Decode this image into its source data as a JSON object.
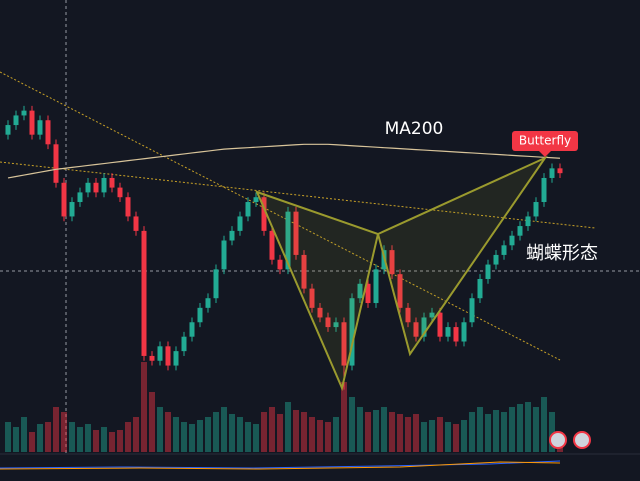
{
  "chart_data": {
    "type": "candlestick",
    "ylim": [
      0,
      100
    ],
    "y2lim": [
      0,
      100
    ],
    "up_color": "#22ab94",
    "down_color": "#f23645",
    "annotations": {
      "ma_label": "MA200",
      "pattern_badge": "Butterfly",
      "pattern_note": "蝴蝶形态"
    },
    "open": [
      72,
      74,
      76,
      77,
      72,
      75,
      70,
      62,
      55,
      58,
      60,
      62,
      60,
      63,
      61,
      59,
      55,
      52,
      26,
      25,
      28,
      24,
      27,
      30,
      33,
      36,
      38,
      44,
      50,
      52,
      55,
      58,
      59,
      52,
      46,
      44,
      56,
      47,
      40,
      36,
      34,
      32,
      33,
      24,
      38,
      41,
      37,
      44,
      48,
      43,
      36,
      33,
      30,
      34,
      35,
      30,
      32,
      29,
      33,
      38,
      42,
      45,
      47,
      49,
      51,
      53,
      55,
      58,
      63,
      65
    ],
    "high": [
      75,
      77,
      78,
      78,
      76,
      76,
      71,
      63,
      59,
      61,
      63,
      63,
      64,
      64,
      62,
      60,
      56,
      53,
      27,
      29,
      29,
      28,
      31,
      34,
      37,
      39,
      45,
      51,
      53,
      56,
      59,
      60,
      60,
      53,
      47,
      57,
      57,
      48,
      41,
      37,
      35,
      34,
      34,
      39,
      42,
      42,
      45,
      49,
      49,
      44,
      37,
      34,
      35,
      36,
      36,
      33,
      33,
      34,
      39,
      43,
      46,
      48,
      50,
      52,
      54,
      56,
      59,
      64,
      66,
      66
    ],
    "low": [
      71,
      73,
      75,
      71,
      71,
      69,
      61,
      54,
      54,
      57,
      59,
      59,
      59,
      60,
      58,
      54,
      51,
      25,
      24,
      24,
      23,
      23,
      26,
      29,
      32,
      35,
      37,
      43,
      49,
      51,
      54,
      57,
      51,
      45,
      43,
      43,
      46,
      39,
      35,
      33,
      31,
      31,
      19,
      23,
      37,
      36,
      36,
      43,
      42,
      35,
      32,
      29,
      29,
      33,
      29,
      29,
      28,
      28,
      32,
      37,
      41,
      44,
      46,
      48,
      50,
      52,
      54,
      57,
      62,
      63
    ],
    "close": [
      74,
      76,
      77,
      72,
      75,
      70,
      62,
      55,
      58,
      60,
      62,
      60,
      63,
      61,
      59,
      55,
      52,
      26,
      25,
      28,
      24,
      27,
      30,
      33,
      36,
      38,
      44,
      50,
      52,
      55,
      58,
      59,
      52,
      46,
      44,
      56,
      47,
      40,
      36,
      34,
      32,
      33,
      24,
      38,
      41,
      37,
      44,
      48,
      43,
      36,
      33,
      30,
      34,
      35,
      30,
      32,
      29,
      33,
      38,
      42,
      45,
      47,
      49,
      51,
      53,
      55,
      58,
      63,
      65,
      64
    ],
    "volume": [
      30,
      25,
      35,
      20,
      28,
      30,
      45,
      40,
      30,
      25,
      28,
      22,
      25,
      20,
      22,
      30,
      35,
      90,
      60,
      45,
      40,
      35,
      30,
      28,
      32,
      35,
      40,
      45,
      38,
      35,
      30,
      28,
      40,
      45,
      38,
      50,
      42,
      40,
      35,
      32,
      30,
      35,
      70,
      55,
      45,
      40,
      42,
      45,
      40,
      38,
      35,
      38,
      30,
      32,
      35,
      30,
      28,
      32,
      40,
      45,
      38,
      42,
      40,
      45,
      48,
      50,
      45,
      55,
      40,
      20
    ],
    "series": [
      {
        "name": "MA200",
        "color": "#d8c49a",
        "values": [
          63,
          63.3,
          63.6,
          63.9,
          64.2,
          64.5,
          64.8,
          65,
          65.2,
          65.4,
          65.6,
          65.8,
          66,
          66.2,
          66.4,
          66.6,
          66.8,
          67,
          67.2,
          67.4,
          67.6,
          67.8,
          68,
          68.2,
          68.4,
          68.6,
          68.8,
          69,
          69.1,
          69.2,
          69.3,
          69.4,
          69.5,
          69.6,
          69.7,
          69.8,
          69.9,
          70,
          70,
          70,
          70,
          69.9,
          69.8,
          69.7,
          69.6,
          69.5,
          69.4,
          69.3,
          69.2,
          69.1,
          69,
          68.9,
          68.8,
          68.7,
          68.6,
          68.5,
          68.4,
          68.3,
          68.2,
          68.1,
          68,
          67.9,
          67.8,
          67.7,
          67.6,
          67.5,
          67.4,
          67.3,
          67.2,
          67.1
        ]
      }
    ]
  }
}
